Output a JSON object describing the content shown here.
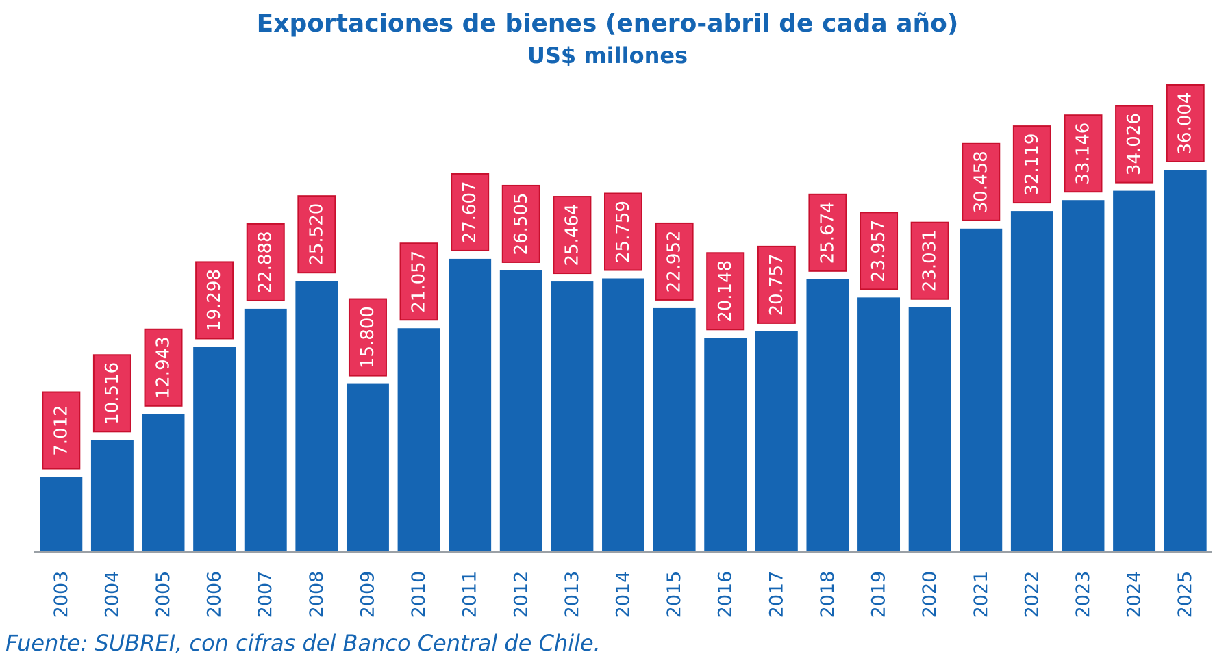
{
  "chart_data": {
    "type": "bar",
    "title": "Exportaciones de bienes (enero-abril de cada año)",
    "subtitle": "US$ millones",
    "xlabel": "",
    "ylabel": "",
    "categories": [
      "2003",
      "2004",
      "2005",
      "2006",
      "2007",
      "2008",
      "2009",
      "2010",
      "2011",
      "2012",
      "2013",
      "2014",
      "2015",
      "2016",
      "2017",
      "2018",
      "2019",
      "2020",
      "2021",
      "2022",
      "2023",
      "2024",
      "2025"
    ],
    "values": [
      7012,
      10516,
      12943,
      19298,
      22888,
      25520,
      15800,
      21057,
      27607,
      26505,
      25464,
      25759,
      22952,
      20148,
      20757,
      25674,
      23957,
      23031,
      30458,
      32119,
      33146,
      34026,
      36004
    ],
    "value_labels": [
      "7.012",
      "10.516",
      "12.943",
      "19.298",
      "22.888",
      "25.520",
      "15.800",
      "21.057",
      "27.607",
      "26.505",
      "25.464",
      "25.759",
      "22.952",
      "20.148",
      "20.757",
      "25.674",
      "23.957",
      "23.031",
      "30.458",
      "32.119",
      "33.146",
      "34.026",
      "36.004"
    ],
    "ylim": [
      0,
      36004
    ],
    "grid": false,
    "legend": "none",
    "colors": {
      "bar": "#1565b3",
      "label_fill": "#e8345a",
      "label_border": "#c8102e",
      "label_text": "#ffffff",
      "text": "#1565b3",
      "axis": "#9aa0a6"
    }
  },
  "source": "Fuente: SUBREI, con cifras del Banco Central de Chile."
}
